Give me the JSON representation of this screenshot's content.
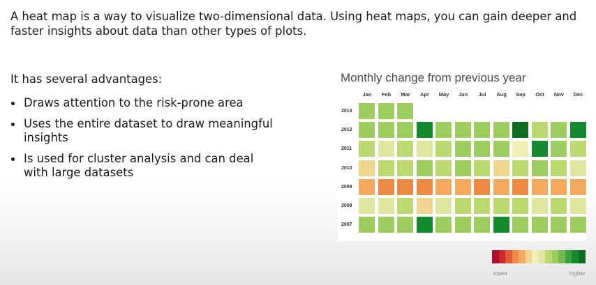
{
  "intro_text": "A heat map is a way to visualize two-dimensional data. Using heat maps, you can gain deeper and faster insights about data than other types of plots.",
  "advantages_heading": "It has several advantages:",
  "advantages": [
    "Draws attention to the risk-prone area",
    "Uses the entire dataset to draw meaningful insights",
    "Is used for cluster analysis and can deal with large datasets"
  ],
  "chart_data": {
    "type": "heatmap",
    "title": "Monthly change from previous year",
    "x": [
      "Jan",
      "Feb",
      "Mar",
      "Apr",
      "May",
      "Jun",
      "Jul",
      "Aug",
      "Sep",
      "Oct",
      "Nov",
      "Dec"
    ],
    "y": [
      "2013",
      "2012",
      "2011",
      "2010",
      "2009",
      "2008",
      "2007"
    ],
    "levels": [
      [
        9,
        9,
        9,
        null,
        null,
        null,
        null,
        null,
        null,
        null,
        null,
        null
      ],
      [
        9,
        9,
        9,
        12,
        9,
        9,
        9,
        9,
        13,
        8,
        9,
        12
      ],
      [
        8,
        7,
        8,
        7,
        8,
        9,
        9,
        9,
        6,
        12,
        9,
        8
      ],
      [
        5,
        8,
        8,
        9,
        8,
        9,
        8,
        5,
        8,
        9,
        8,
        7
      ],
      [
        4,
        3,
        3,
        3,
        4,
        4,
        3,
        4,
        3,
        4,
        4,
        4
      ],
      [
        7,
        7,
        8,
        5,
        7,
        8,
        8,
        8,
        8,
        7,
        8,
        7
      ],
      [
        9,
        9,
        9,
        12,
        9,
        9,
        9,
        12,
        9,
        9,
        9,
        9
      ]
    ],
    "scale_colors": [
      "#b00d2b",
      "#cc2a2a",
      "#e35b35",
      "#ef8a45",
      "#f4a95e",
      "#efd58f",
      "#f2efb4",
      "#dfe69f",
      "#bcd96f",
      "#9dcc5f",
      "#74b84f",
      "#3aa23e",
      "#148a2f",
      "#0c6e22"
    ],
    "legend": {
      "low": "lower",
      "high": "higher"
    }
  }
}
